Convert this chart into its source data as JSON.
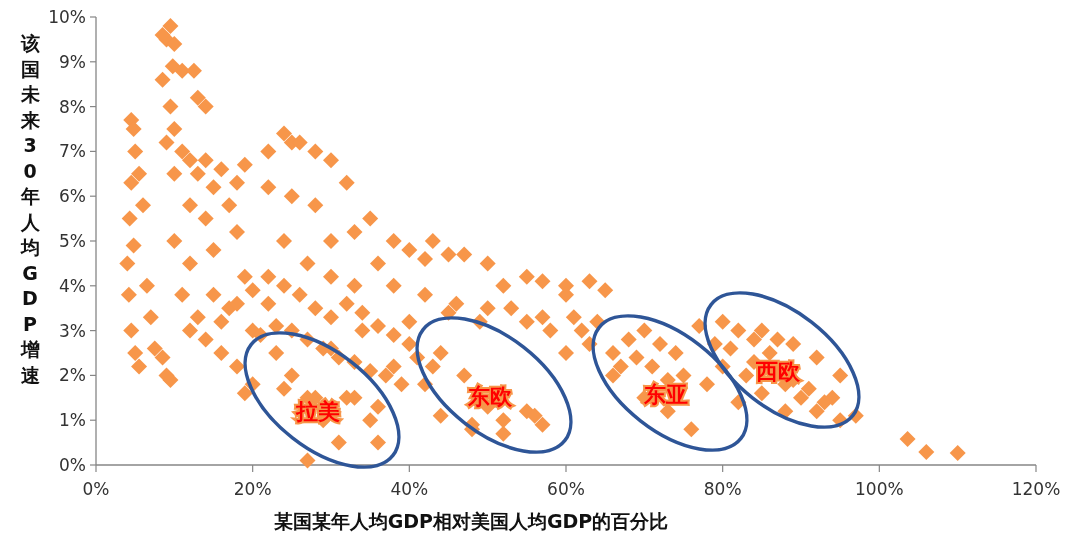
{
  "chart_data": {
    "type": "scatter",
    "xlabel": "某国某年人均GDP相对美国人均GDP的百分比",
    "ylabel": "该国未来30年人均GDP增速",
    "x": [
      4.5,
      4.8,
      5,
      4.5,
      4.3,
      4.0,
      4.2,
      4.5,
      5.0,
      5.5,
      4.8,
      5.5,
      6,
      6.5,
      7,
      7.5,
      8.5,
      9.0,
      9.5,
      9.5,
      8.5,
      9,
      10,
      9.8,
      11,
      8.5,
      12.5,
      13,
      14,
      9.5,
      10,
      9,
      10,
      11,
      12,
      13,
      14,
      15,
      16,
      18,
      19,
      12,
      14,
      17,
      10,
      12,
      15,
      18,
      11,
      13,
      15,
      17,
      19,
      20,
      22,
      12,
      14,
      16,
      18,
      19,
      22,
      24,
      25,
      26,
      28,
      30,
      32,
      22,
      25,
      28,
      30,
      33,
      35,
      24,
      27,
      30,
      33,
      36,
      23,
      25,
      27,
      29,
      31,
      27,
      33,
      35,
      36,
      30,
      34,
      38,
      40,
      38,
      40,
      42,
      43,
      45,
      47,
      50,
      52,
      55,
      57,
      60,
      63,
      65,
      38,
      42,
      46,
      50,
      55,
      58,
      62,
      44,
      47,
      50,
      52,
      55,
      57,
      48,
      42,
      60,
      63,
      66,
      68,
      70,
      72,
      74,
      66,
      70,
      73,
      76,
      75,
      78,
      77,
      80,
      82,
      84,
      86,
      80,
      83,
      85,
      88,
      90,
      92,
      94,
      95,
      95,
      97,
      88,
      82,
      16,
      18,
      20,
      22,
      24,
      26,
      28,
      30,
      32,
      34,
      36,
      38,
      40,
      21,
      23,
      25,
      27,
      29,
      31,
      33,
      35,
      37,
      39,
      41,
      43,
      20,
      24,
      28,
      32,
      36,
      44,
      48,
      52,
      56,
      60,
      45,
      49,
      53,
      57,
      61,
      64,
      67,
      69,
      71,
      73,
      79,
      81,
      84,
      87,
      89,
      91,
      93,
      85,
      89,
      92,
      103.6,
      106,
      110
    ],
    "values": [
      7.7,
      7.5,
      7.0,
      6.3,
      5.5,
      4.5,
      3.8,
      3.0,
      2.5,
      2.2,
      4.9,
      6.5,
      5.8,
      4.0,
      3.3,
      2.6,
      2.4,
      2.0,
      1.9,
      9.8,
      9.6,
      9.5,
      9.4,
      8.9,
      8.8,
      8.6,
      8.8,
      8.2,
      8.0,
      8.0,
      7.5,
      7.2,
      6.5,
      7.0,
      6.8,
      6.5,
      6.8,
      6.2,
      6.6,
      6.3,
      6.7,
      5.8,
      5.5,
      5.8,
      5.0,
      4.5,
      4.8,
      5.2,
      3.8,
      3.3,
      3.8,
      3.5,
      4.2,
      3.0,
      3.6,
      3.0,
      2.8,
      2.5,
      2.2,
      1.6,
      7.0,
      7.4,
      7.2,
      7.2,
      7.0,
      6.8,
      6.3,
      6.2,
      6.0,
      5.8,
      5.0,
      5.2,
      5.5,
      5.0,
      4.5,
      4.2,
      4.0,
      4.5,
      2.5,
      2.0,
      1.5,
      1.0,
      0.5,
      0.1,
      1.5,
      1.0,
      0.5,
      2.6,
      3.0,
      2.2,
      3.2,
      5.0,
      4.8,
      4.6,
      5.0,
      4.7,
      4.7,
      4.5,
      4.0,
      4.2,
      4.1,
      4.0,
      4.1,
      3.9,
      4.0,
      3.8,
      3.6,
      3.5,
      3.2,
      3.0,
      3.0,
      2.5,
      2.0,
      1.3,
      1.0,
      1.2,
      0.9,
      0.8,
      1.8,
      2.5,
      2.7,
      2.5,
      2.8,
      3.0,
      2.7,
      2.5,
      2.0,
      1.5,
      1.2,
      0.8,
      2.0,
      1.8,
      3.1,
      3.2,
      3.0,
      2.8,
      2.5,
      2.2,
      2.0,
      1.6,
      1.8,
      1.5,
      1.2,
      1.5,
      2.0,
      1.0,
      1.1,
      1.2,
      1.4,
      3.2,
      3.6,
      3.9,
      4.2,
      4.0,
      3.8,
      3.5,
      3.3,
      3.6,
      3.4,
      3.1,
      2.9,
      2.7,
      2.9,
      3.1,
      3.0,
      2.8,
      2.6,
      2.4,
      2.3,
      2.1,
      2.0,
      1.8,
      2.4,
      2.2,
      1.8,
      1.7,
      1.5,
      1.5,
      1.3,
      1.1,
      0.9,
      0.7,
      1.1,
      3.8,
      3.4,
      3.2,
      3.5,
      3.3,
      3.3,
      3.2,
      2.2,
      2.4,
      2.2,
      1.9,
      2.7,
      2.6,
      2.3,
      2.8,
      1.9,
      1.7,
      1.4,
      3.0,
      2.7,
      2.4,
      0.58,
      0.29,
      0.27
    ],
    "color": "#f7964a",
    "marker": "diamond",
    "xlim": [
      0,
      120
    ],
    "xticks": [
      {
        "value": 0,
        "label": "0%"
      },
      {
        "value": 20,
        "label": "20%"
      },
      {
        "value": 40,
        "label": "40%"
      },
      {
        "value": 60,
        "label": "60%"
      },
      {
        "value": 80,
        "label": "80%"
      },
      {
        "value": 100,
        "label": "100%"
      },
      {
        "value": 120,
        "label": "120%"
      }
    ],
    "ylim": [
      0,
      10
    ],
    "yticks": [
      {
        "value": 0,
        "label": "0%"
      },
      {
        "value": 1,
        "label": "1%"
      },
      {
        "value": 2,
        "label": "2%"
      },
      {
        "value": 3,
        "label": "3%"
      },
      {
        "value": 4,
        "label": "4%"
      },
      {
        "value": 5,
        "label": "5%"
      },
      {
        "value": 6,
        "label": "6%"
      },
      {
        "value": 7,
        "label": "7%"
      },
      {
        "value": 8,
        "label": "8%"
      },
      {
        "value": 9,
        "label": "9%"
      },
      {
        "value": 10,
        "label": "10%"
      }
    ],
    "annotations": [
      "拉美",
      "东欧",
      "东亚",
      "西欧"
    ]
  }
}
